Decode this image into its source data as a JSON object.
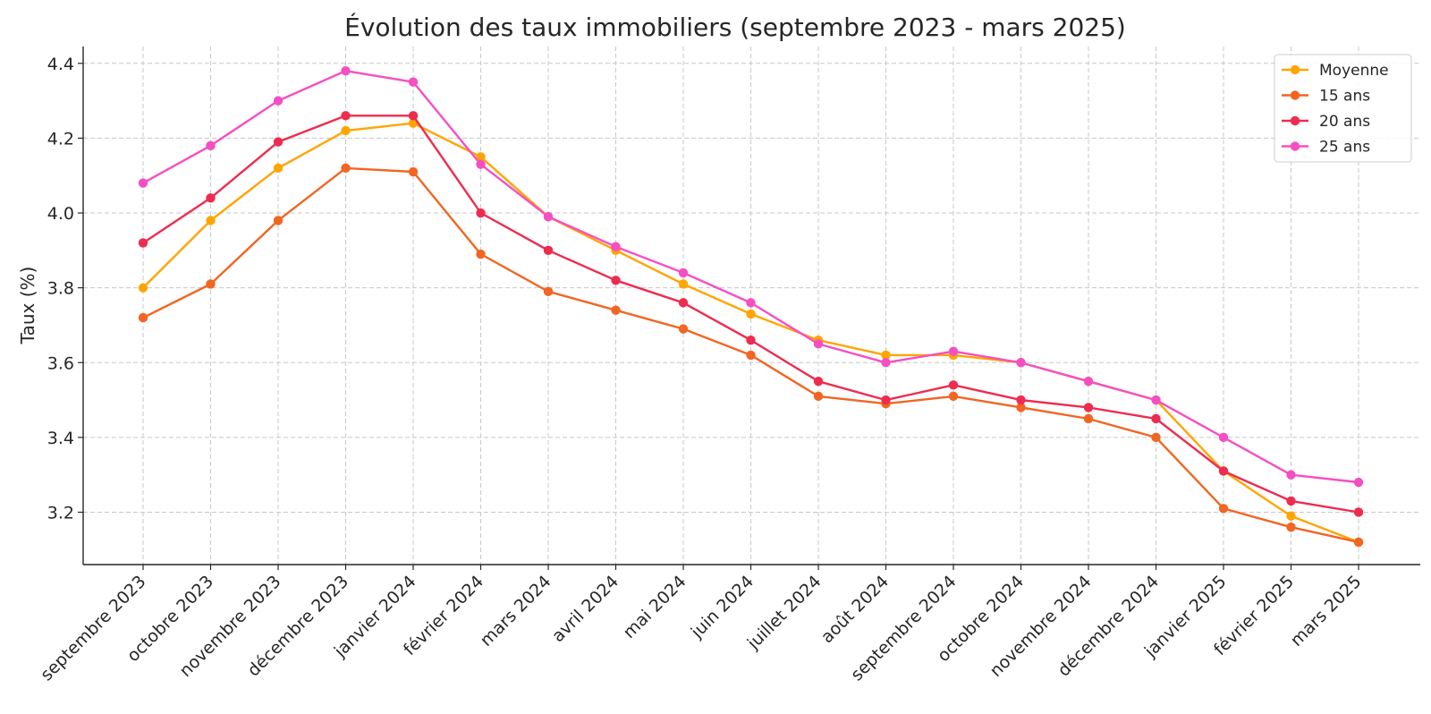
{
  "chart_data": {
    "type": "line",
    "title": "Évolution des taux immobiliers (septembre 2023 - mars 2025)",
    "xlabel": "",
    "ylabel": "Taux (%)",
    "ylim": [
      3.06,
      4.445
    ],
    "yticks": [
      3.2,
      3.4,
      3.6,
      3.8,
      4.0,
      4.2,
      4.4
    ],
    "ytick_labels": [
      "3.2",
      "3.4",
      "3.6",
      "3.8",
      "4.0",
      "4.2",
      "4.4"
    ],
    "grid": true,
    "legend_position": "top-right",
    "categories": [
      "septembre 2023",
      "octobre 2023",
      "novembre 2023",
      "décembre 2023",
      "janvier 2024",
      "février 2024",
      "mars 2024",
      "avril 2024",
      "mai 2024",
      "juin 2024",
      "juillet 2024",
      "août 2024",
      "septembre 2024",
      "octobre 2024",
      "novembre 2024",
      "décembre 2024",
      "janvier 2025",
      "février 2025",
      "mars 2025"
    ],
    "series": [
      {
        "name": "Moyenne",
        "color": "#FFA500",
        "values": [
          3.8,
          3.98,
          4.12,
          4.22,
          4.24,
          4.15,
          3.99,
          3.9,
          3.81,
          3.73,
          3.66,
          3.62,
          3.62,
          3.6,
          3.55,
          3.5,
          3.31,
          3.19,
          3.12
        ]
      },
      {
        "name": "15 ans",
        "color": "#F26522",
        "values": [
          3.72,
          3.81,
          3.98,
          4.12,
          4.11,
          3.89,
          3.79,
          3.74,
          3.69,
          3.62,
          3.51,
          3.49,
          3.51,
          3.48,
          3.45,
          3.4,
          3.21,
          3.16,
          3.12
        ]
      },
      {
        "name": "20 ans",
        "color": "#EE2C4F",
        "values": [
          3.92,
          4.04,
          4.19,
          4.26,
          4.26,
          4.0,
          3.9,
          3.82,
          3.76,
          3.66,
          3.55,
          3.5,
          3.54,
          3.5,
          3.48,
          3.45,
          3.31,
          3.23,
          3.2
        ]
      },
      {
        "name": "25 ans",
        "color": "#F54FC3",
        "values": [
          4.08,
          4.18,
          4.3,
          4.38,
          4.35,
          4.13,
          3.99,
          3.91,
          3.84,
          3.76,
          3.65,
          3.6,
          3.63,
          3.6,
          3.55,
          3.5,
          3.4,
          3.3,
          3.28
        ]
      }
    ]
  }
}
